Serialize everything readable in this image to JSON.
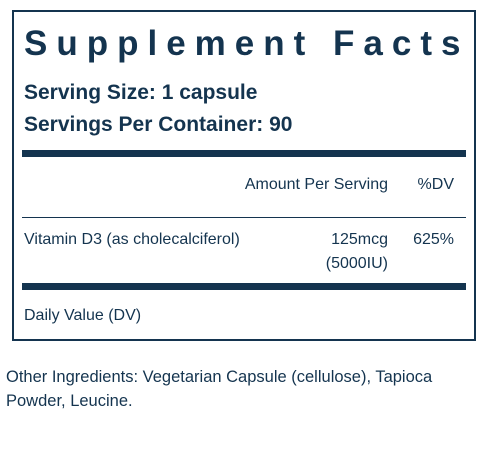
{
  "facts": {
    "title": "Supplement Facts",
    "serving_size": "Serving Size: 1 capsule",
    "servings_per_container": "Servings Per Container: 90",
    "columns": {
      "amount": "Amount Per Serving",
      "dv": "%DV"
    },
    "nutrients": [
      {
        "name": "Vitamin D3 (as cholecalciferol)",
        "amount_line1": "125mcg",
        "amount_line2": "(5000IU)",
        "dv": "625%"
      }
    ],
    "footnote": "Daily Value (DV)"
  },
  "other_ingredients": "Other Ingredients: Vegetarian Capsule (cellulose), Tapioca Powder, Leucine.",
  "colors": {
    "ink": "#14344f",
    "background": "#ffffff"
  }
}
